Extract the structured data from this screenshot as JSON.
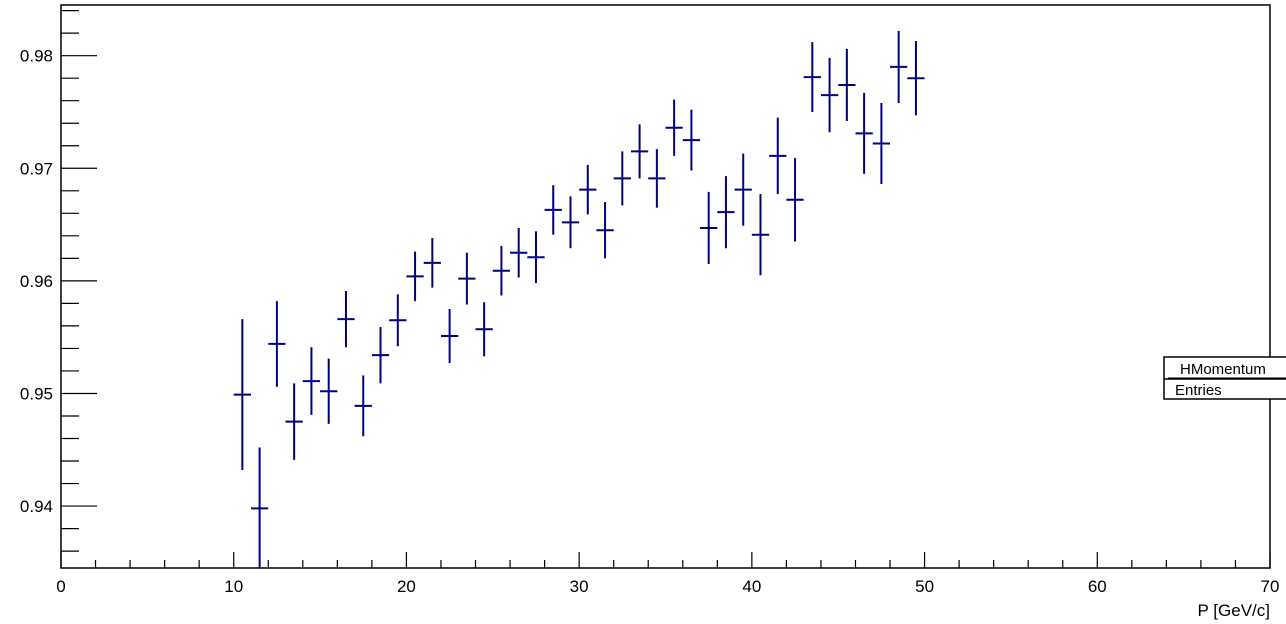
{
  "chart_data": {
    "type": "scatter",
    "title": "",
    "xlabel": "P [GeV/c]",
    "ylabel": "",
    "xlim": [
      0,
      70
    ],
    "ylim": [
      0.9345,
      0.9845
    ],
    "x_ticks": [
      0,
      10,
      20,
      30,
      40,
      50,
      60,
      70
    ],
    "x_tick_labels": [
      "0",
      "10",
      "20",
      "30",
      "40",
      "50",
      "60",
      "70"
    ],
    "y_ticks": [
      0.94,
      0.95,
      0.96,
      0.97,
      0.98
    ],
    "y_tick_labels": [
      "0.94",
      "0.95",
      "0.96",
      "0.97",
      "0.98"
    ],
    "grid": false,
    "series_color": "#000080",
    "x_half_width": 0.5,
    "series": [
      {
        "name": "",
        "points": [
          {
            "x": 10.5,
            "y": 0.9499,
            "err": 0.0067
          },
          {
            "x": 11.5,
            "y": 0.9398,
            "err": 0.0054
          },
          {
            "x": 12.5,
            "y": 0.9544,
            "err": 0.0038
          },
          {
            "x": 13.5,
            "y": 0.9475,
            "err": 0.0034
          },
          {
            "x": 14.5,
            "y": 0.9511,
            "err": 0.003
          },
          {
            "x": 15.5,
            "y": 0.9502,
            "err": 0.0029
          },
          {
            "x": 16.5,
            "y": 0.9566,
            "err": 0.0025
          },
          {
            "x": 17.5,
            "y": 0.9489,
            "err": 0.0027
          },
          {
            "x": 18.5,
            "y": 0.9534,
            "err": 0.0025
          },
          {
            "x": 19.5,
            "y": 0.9565,
            "err": 0.0023
          },
          {
            "x": 20.5,
            "y": 0.9604,
            "err": 0.0022
          },
          {
            "x": 21.5,
            "y": 0.9616,
            "err": 0.0022
          },
          {
            "x": 22.5,
            "y": 0.9551,
            "err": 0.0024
          },
          {
            "x": 23.5,
            "y": 0.9602,
            "err": 0.0023
          },
          {
            "x": 24.5,
            "y": 0.9557,
            "err": 0.0024
          },
          {
            "x": 25.5,
            "y": 0.9609,
            "err": 0.0022
          },
          {
            "x": 26.5,
            "y": 0.9625,
            "err": 0.0022
          },
          {
            "x": 27.5,
            "y": 0.9621,
            "err": 0.0023
          },
          {
            "x": 28.5,
            "y": 0.9663,
            "err": 0.0022
          },
          {
            "x": 29.5,
            "y": 0.9652,
            "err": 0.0023
          },
          {
            "x": 30.5,
            "y": 0.9681,
            "err": 0.0022
          },
          {
            "x": 31.5,
            "y": 0.9645,
            "err": 0.0025
          },
          {
            "x": 32.5,
            "y": 0.9691,
            "err": 0.0024
          },
          {
            "x": 33.5,
            "y": 0.9715,
            "err": 0.0024
          },
          {
            "x": 34.5,
            "y": 0.9691,
            "err": 0.0026
          },
          {
            "x": 35.5,
            "y": 0.9736,
            "err": 0.0025
          },
          {
            "x": 36.5,
            "y": 0.9725,
            "err": 0.0027
          },
          {
            "x": 37.5,
            "y": 0.9647,
            "err": 0.0032
          },
          {
            "x": 38.5,
            "y": 0.9661,
            "err": 0.0032
          },
          {
            "x": 39.5,
            "y": 0.9681,
            "err": 0.0032
          },
          {
            "x": 40.5,
            "y": 0.9641,
            "err": 0.0036
          },
          {
            "x": 41.5,
            "y": 0.9711,
            "err": 0.0034
          },
          {
            "x": 42.5,
            "y": 0.9672,
            "err": 0.0037
          },
          {
            "x": 43.5,
            "y": 0.9781,
            "err": 0.0031
          },
          {
            "x": 44.5,
            "y": 0.9765,
            "err": 0.0033
          },
          {
            "x": 45.5,
            "y": 0.9774,
            "err": 0.0032
          },
          {
            "x": 46.5,
            "y": 0.9731,
            "err": 0.0036
          },
          {
            "x": 47.5,
            "y": 0.9722,
            "err": 0.0036
          },
          {
            "x": 48.5,
            "y": 0.979,
            "err": 0.0032
          },
          {
            "x": 49.5,
            "y": 0.978,
            "err": 0.0033
          }
        ]
      }
    ]
  },
  "stats_box": {
    "title": "HMomentum",
    "entries_label": "Entries"
  }
}
